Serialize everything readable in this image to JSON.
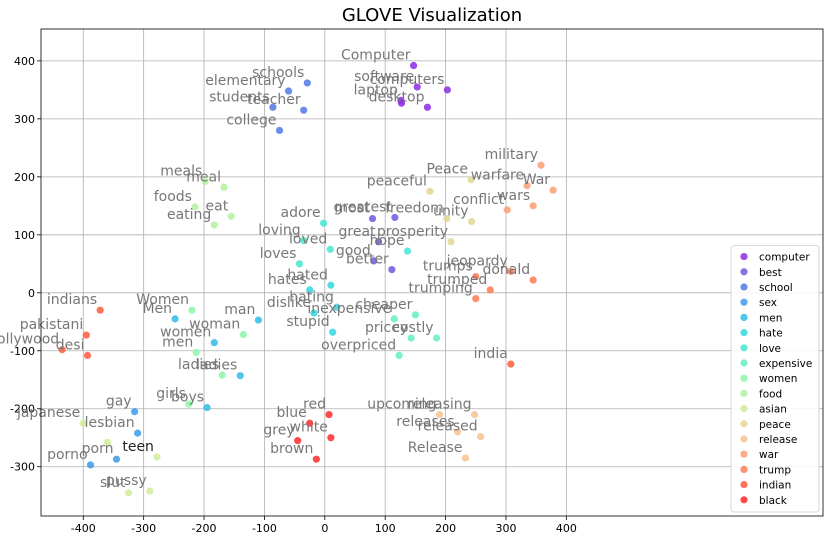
{
  "chart_data": {
    "type": "scatter",
    "title": "GLOVE Visualization",
    "xlabel": "",
    "ylabel": "",
    "xlim": [
      -470,
      825
    ],
    "ylim": [
      -385,
      455
    ],
    "xticks": [
      -400,
      -300,
      -200,
      -100,
      0,
      100,
      200,
      300,
      400
    ],
    "yticks": [
      -300,
      -200,
      -100,
      0,
      100,
      200,
      300,
      400
    ],
    "grid": true,
    "legend_position": "lower-right",
    "series": [
      {
        "name": "computer",
        "color": "#8b2be2",
        "points": [
          {
            "x": 147,
            "y": 392,
            "label": "Computer"
          },
          {
            "x": 153,
            "y": 355,
            "label": "software"
          },
          {
            "x": 203,
            "y": 350,
            "label": "computers"
          },
          {
            "x": 126,
            "y": 332,
            "label": "laptop"
          },
          {
            "x": 127,
            "y": 327,
            "label": ""
          },
          {
            "x": 170,
            "y": 320,
            "label": "desktop"
          }
        ]
      },
      {
        "name": "best",
        "color": "#6a5be0",
        "points": [
          {
            "x": 79,
            "y": 128,
            "label": "most"
          },
          {
            "x": 116,
            "y": 130,
            "label": "greatest"
          },
          {
            "x": 89,
            "y": 88,
            "label": "great"
          },
          {
            "x": 81,
            "y": 55,
            "label": "good"
          },
          {
            "x": 111,
            "y": 40,
            "label": "better"
          }
        ]
      },
      {
        "name": "school",
        "color": "#4f79e4",
        "points": [
          {
            "x": -29,
            "y": 362,
            "label": "schools"
          },
          {
            "x": -60,
            "y": 348,
            "label": "elementary"
          },
          {
            "x": -35,
            "y": 315,
            "label": "teacher"
          },
          {
            "x": -86,
            "y": 320,
            "label": "students"
          },
          {
            "x": -75,
            "y": 280,
            "label": "college"
          }
        ]
      },
      {
        "name": "sex",
        "color": "#3a9bea",
        "points": [
          {
            "x": -315,
            "y": -205,
            "label": "gay"
          },
          {
            "x": -310,
            "y": -242,
            "label": "lesbian"
          },
          {
            "x": -345,
            "y": -287,
            "label": "porn"
          },
          {
            "x": -388,
            "y": -297,
            "label": "porno"
          }
        ]
      },
      {
        "name": "men",
        "color": "#2fbbe8",
        "points": [
          {
            "x": -248,
            "y": -45,
            "label": "Men"
          },
          {
            "x": -110,
            "y": -47,
            "label": "man"
          },
          {
            "x": -183,
            "y": -86,
            "label": "women"
          },
          {
            "x": -195,
            "y": -198,
            "label": "boys"
          },
          {
            "x": -140,
            "y": -143,
            "label": "ladies"
          }
        ]
      },
      {
        "name": "hate",
        "color": "#33d5e2",
        "points": [
          {
            "x": 10,
            "y": 13,
            "label": "hated"
          },
          {
            "x": -25,
            "y": 5,
            "label": "hates"
          },
          {
            "x": 20,
            "y": -25,
            "label": "hating"
          },
          {
            "x": -18,
            "y": -35,
            "label": "dislike"
          },
          {
            "x": 13,
            "y": -68,
            "label": "stupid"
          }
        ]
      },
      {
        "name": "love",
        "color": "#45e5d2",
        "points": [
          {
            "x": -2,
            "y": 120,
            "label": "adore"
          },
          {
            "x": -35,
            "y": 90,
            "label": "loving"
          },
          {
            "x": 9,
            "y": 75,
            "label": "loved"
          },
          {
            "x": -42,
            "y": 50,
            "label": "loves"
          },
          {
            "x": 137,
            "y": 72,
            "label": "hope"
          }
        ]
      },
      {
        "name": "expensive",
        "color": "#62f0be",
        "points": [
          {
            "x": 150,
            "y": -38,
            "label": "cheaper"
          },
          {
            "x": 115,
            "y": -45,
            "label": "inexpensive"
          },
          {
            "x": 185,
            "y": -78,
            "label": "costly"
          },
          {
            "x": 143,
            "y": -78,
            "label": "pricey"
          },
          {
            "x": 123,
            "y": -108,
            "label": "overpriced"
          }
        ]
      },
      {
        "name": "women",
        "color": "#8ef5a8",
        "points": [
          {
            "x": -220,
            "y": -30,
            "label": "Women"
          },
          {
            "x": -135,
            "y": -72,
            "label": "woman"
          },
          {
            "x": -213,
            "y": -103,
            "label": "men"
          },
          {
            "x": -170,
            "y": -142,
            "label": "ladies"
          },
          {
            "x": -225,
            "y": -192,
            "label": "girls"
          }
        ]
      },
      {
        "name": "food",
        "color": "#b0f2a0",
        "points": [
          {
            "x": -198,
            "y": 192,
            "label": "meals"
          },
          {
            "x": -167,
            "y": 182,
            "label": "meal"
          },
          {
            "x": -215,
            "y": 148,
            "label": "foods"
          },
          {
            "x": -155,
            "y": 132,
            "label": "eat"
          },
          {
            "x": -183,
            "y": 117,
            "label": "eating"
          }
        ]
      },
      {
        "name": "asian",
        "color": "#cfeb97",
        "points": [
          {
            "x": -400,
            "y": -225,
            "label": "japanese"
          },
          {
            "x": -360,
            "y": -258,
            "label": ""
          },
          {
            "x": -278,
            "y": -283,
            "label": "teen"
          },
          {
            "x": -325,
            "y": -345,
            "label": "slut"
          },
          {
            "x": -290,
            "y": -342,
            "label": "pussy"
          }
        ]
      },
      {
        "name": "peace",
        "color": "#e2d795",
        "points": [
          {
            "x": 242,
            "y": 195,
            "label": "Peace"
          },
          {
            "x": 174,
            "y": 175,
            "label": "peaceful"
          },
          {
            "x": 202,
            "y": 128,
            "label": "freedom"
          },
          {
            "x": 243,
            "y": 123,
            "label": "unity"
          },
          {
            "x": 209,
            "y": 88,
            "label": "prosperity"
          }
        ]
      },
      {
        "name": "release",
        "color": "#f7c391",
        "points": [
          {
            "x": 190,
            "y": -210,
            "label": "upcoming"
          },
          {
            "x": 248,
            "y": -210,
            "label": "releasing"
          },
          {
            "x": 258,
            "y": -248,
            "label": "released"
          },
          {
            "x": 220,
            "y": -240,
            "label": "releases"
          },
          {
            "x": 233,
            "y": -285,
            "label": "Release"
          }
        ]
      },
      {
        "name": "war",
        "color": "#fb9e73",
        "points": [
          {
            "x": 358,
            "y": 220,
            "label": "military"
          },
          {
            "x": 335,
            "y": 185,
            "label": "warfare"
          },
          {
            "x": 378,
            "y": 177,
            "label": "War"
          },
          {
            "x": 345,
            "y": 150,
            "label": "wars"
          },
          {
            "x": 302,
            "y": 143,
            "label": "conflict"
          }
        ]
      },
      {
        "name": "trump",
        "color": "#ff7a55",
        "points": [
          {
            "x": 250,
            "y": 28,
            "label": "trumps"
          },
          {
            "x": 308,
            "y": 37,
            "label": "jeopardy"
          },
          {
            "x": 274,
            "y": 5,
            "label": "trumped"
          },
          {
            "x": 250,
            "y": -10,
            "label": "trumping"
          },
          {
            "x": 345,
            "y": 22,
            "label": "donald"
          }
        ]
      },
      {
        "name": "indian",
        "color": "#ff5a3d",
        "points": [
          {
            "x": -372,
            "y": -30,
            "label": "indians"
          },
          {
            "x": -395,
            "y": -73,
            "label": "pakistani"
          },
          {
            "x": -435,
            "y": -98,
            "label": "bollywood"
          },
          {
            "x": -393,
            "y": -108,
            "label": "desi"
          },
          {
            "x": 308,
            "y": -123,
            "label": "india"
          }
        ]
      },
      {
        "name": "black",
        "color": "#ff2a2a",
        "points": [
          {
            "x": 7,
            "y": -210,
            "label": "red"
          },
          {
            "x": -25,
            "y": -225,
            "label": "blue"
          },
          {
            "x": 10,
            "y": -250,
            "label": "white"
          },
          {
            "x": -45,
            "y": -255,
            "label": "grey"
          },
          {
            "x": -14,
            "y": -287,
            "label": "brown"
          }
        ]
      }
    ]
  }
}
